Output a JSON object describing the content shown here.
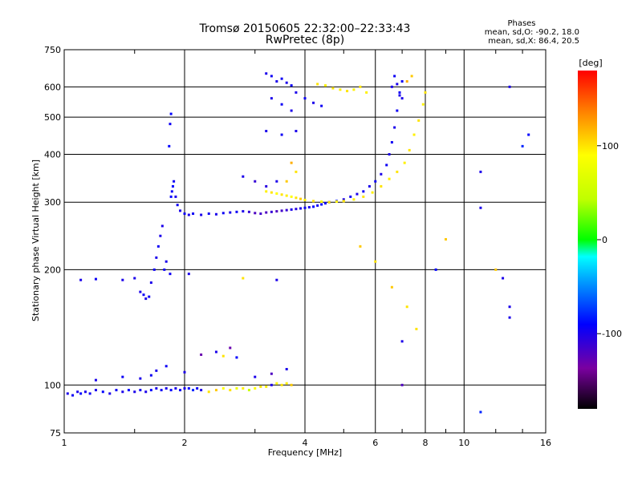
{
  "chart_data": {
    "type": "scatter",
    "title": "Tromsø 20150605 22:32:00–22:33:43",
    "subtitle": "RwPretec (8p)",
    "xlabel": "Frequency [MHz]",
    "ylabel": "Stationary phase Virtual Height [km]",
    "x_scale": "log",
    "y_scale": "log",
    "xlim": [
      1,
      16
    ],
    "ylim": [
      75,
      750
    ],
    "x_ticks": [
      1,
      2,
      4,
      6,
      8,
      10,
      16
    ],
    "x_tick_labels": [
      "1",
      "2",
      "4",
      "6",
      "8",
      "10",
      "16"
    ],
    "y_ticks": [
      75,
      100,
      200,
      300,
      400,
      500,
      600,
      750
    ],
    "y_tick_labels": [
      "75",
      "100",
      "200",
      "300",
      "400",
      "500",
      "600",
      "750"
    ],
    "grid": true,
    "phase_info": {
      "title": "Phases",
      "line_o": "mean, sd,O: -90.2, 18.0",
      "line_x": "mean, sd,X: 86.4, 20.5"
    },
    "colorbar": {
      "label": "[deg]",
      "range": [
        -180,
        180
      ],
      "ticks": [
        100,
        0,
        -100
      ],
      "tick_labels": [
        "100",
        "0",
        "-100"
      ]
    },
    "series": [
      {
        "points": [
          [
            1.02,
            95,
            -100
          ],
          [
            1.05,
            94,
            -95
          ],
          [
            1.08,
            96,
            -100
          ],
          [
            1.1,
            95,
            -90
          ],
          [
            1.13,
            96,
            -100
          ],
          [
            1.16,
            95,
            -95
          ],
          [
            1.2,
            97,
            -100
          ],
          [
            1.25,
            96,
            -90
          ],
          [
            1.3,
            95,
            -100
          ],
          [
            1.35,
            97,
            -95
          ],
          [
            1.4,
            96,
            -100
          ],
          [
            1.45,
            97,
            -90
          ],
          [
            1.5,
            96,
            -100
          ],
          [
            1.55,
            97,
            -95
          ],
          [
            1.6,
            96,
            -100
          ],
          [
            1.65,
            97,
            -90
          ],
          [
            1.7,
            98,
            -100
          ],
          [
            1.75,
            97,
            -95
          ],
          [
            1.8,
            98,
            -100
          ],
          [
            1.85,
            97,
            -90
          ],
          [
            1.9,
            98,
            -100
          ],
          [
            1.95,
            97,
            -95
          ],
          [
            2.0,
            98,
            -100
          ],
          [
            2.05,
            98,
            -90
          ],
          [
            2.1,
            97,
            -80
          ],
          [
            2.15,
            98,
            -95
          ],
          [
            2.2,
            97,
            -100
          ],
          [
            2.3,
            96,
            100
          ],
          [
            2.4,
            97,
            110
          ],
          [
            2.5,
            98,
            90
          ],
          [
            2.6,
            97,
            100
          ],
          [
            2.7,
            98,
            80
          ],
          [
            2.8,
            98,
            95
          ],
          [
            2.9,
            97,
            50
          ],
          [
            3.0,
            98,
            90
          ],
          [
            3.1,
            99,
            100
          ],
          [
            3.2,
            99,
            95
          ],
          [
            3.3,
            100,
            -100
          ],
          [
            3.4,
            101,
            90
          ],
          [
            3.5,
            100,
            100
          ],
          [
            3.6,
            101,
            95
          ],
          [
            3.7,
            100,
            110
          ],
          [
            1.2,
            103,
            -100
          ],
          [
            1.4,
            105,
            -95
          ],
          [
            1.55,
            104,
            -100
          ],
          [
            1.65,
            106,
            -95
          ],
          [
            1.7,
            109,
            -100
          ],
          [
            1.8,
            112,
            -95
          ],
          [
            2.0,
            108,
            -100
          ],
          [
            2.2,
            120,
            -130
          ],
          [
            2.4,
            122,
            -100
          ],
          [
            2.5,
            119,
            100
          ],
          [
            2.6,
            125,
            -130
          ],
          [
            2.7,
            118,
            -90
          ],
          [
            3.0,
            105,
            -100
          ],
          [
            3.3,
            107,
            -120
          ],
          [
            3.6,
            110,
            -100
          ],
          [
            1.1,
            188,
            -100
          ],
          [
            1.2,
            189,
            -95
          ],
          [
            1.4,
            188,
            -100
          ],
          [
            1.5,
            190,
            -100
          ],
          [
            1.55,
            175,
            -100
          ],
          [
            1.58,
            172,
            -95
          ],
          [
            1.6,
            168,
            -100
          ],
          [
            1.63,
            170,
            -95
          ],
          [
            1.65,
            185,
            -100
          ],
          [
            1.68,
            200,
            -95
          ],
          [
            1.7,
            215,
            -100
          ],
          [
            1.72,
            230,
            -95
          ],
          [
            1.74,
            245,
            -100
          ],
          [
            1.76,
            260,
            -100
          ],
          [
            1.78,
            200,
            -95
          ],
          [
            1.8,
            210,
            -100
          ],
          [
            1.84,
            195,
            -95
          ],
          [
            2.05,
            195,
            -100
          ],
          [
            2.8,
            190,
            100
          ],
          [
            3.4,
            188,
            -100
          ],
          [
            1.85,
            310,
            -90
          ],
          [
            1.86,
            320,
            -95
          ],
          [
            1.87,
            330,
            -90
          ],
          [
            1.88,
            340,
            -95
          ],
          [
            1.9,
            310,
            -100
          ],
          [
            1.92,
            295,
            -95
          ],
          [
            1.95,
            285,
            -100
          ],
          [
            2.0,
            280,
            -95
          ],
          [
            2.05,
            278,
            -100
          ],
          [
            2.1,
            280,
            -95
          ],
          [
            2.2,
            278,
            -100
          ],
          [
            2.3,
            280,
            -95
          ],
          [
            2.4,
            279,
            -100
          ],
          [
            2.5,
            281,
            -95
          ],
          [
            2.6,
            282,
            -100
          ],
          [
            2.7,
            283,
            -95
          ],
          [
            2.8,
            284,
            -100
          ],
          [
            2.9,
            283,
            -110
          ],
          [
            3.0,
            281,
            -120
          ],
          [
            3.1,
            280,
            -115
          ],
          [
            3.2,
            282,
            -120
          ],
          [
            3.3,
            283,
            -110
          ],
          [
            3.4,
            284,
            -120
          ],
          [
            3.5,
            285,
            -115
          ],
          [
            3.6,
            286,
            -110
          ],
          [
            3.7,
            287,
            -100
          ],
          [
            3.8,
            288,
            -105
          ],
          [
            3.9,
            289,
            -100
          ],
          [
            4.0,
            290,
            -95
          ],
          [
            4.1,
            291,
            -100
          ],
          [
            4.2,
            292,
            -90
          ],
          [
            4.3,
            294,
            -95
          ],
          [
            4.4,
            296,
            -90
          ],
          [
            4.5,
            298,
            -95
          ],
          [
            4.6,
            300,
            -90
          ],
          [
            4.8,
            302,
            -85
          ],
          [
            1.83,
            420,
            -90
          ],
          [
            1.84,
            480,
            -95
          ],
          [
            1.85,
            510,
            -90
          ],
          [
            2.8,
            350,
            -100
          ],
          [
            3.0,
            340,
            -110
          ],
          [
            3.2,
            330,
            -105
          ],
          [
            3.4,
            340,
            -100
          ],
          [
            3.2,
            320,
            95
          ],
          [
            3.3,
            318,
            100
          ],
          [
            3.4,
            316,
            90
          ],
          [
            3.5,
            314,
            100
          ],
          [
            3.6,
            312,
            95
          ],
          [
            3.7,
            310,
            90
          ],
          [
            3.8,
            308,
            100
          ],
          [
            3.9,
            306,
            110
          ],
          [
            4.0,
            304,
            95
          ],
          [
            4.2,
            302,
            100
          ],
          [
            4.4,
            301,
            90
          ],
          [
            4.6,
            300,
            100
          ],
          [
            4.8,
            301,
            95
          ],
          [
            5.0,
            302,
            90
          ],
          [
            3.6,
            340,
            110
          ],
          [
            3.8,
            360,
            100
          ],
          [
            3.7,
            380,
            120
          ],
          [
            5.0,
            305,
            -100
          ],
          [
            5.2,
            310,
            -95
          ],
          [
            5.4,
            315,
            -100
          ],
          [
            5.6,
            320,
            -95
          ],
          [
            5.8,
            330,
            -100
          ],
          [
            6.0,
            340,
            -95
          ],
          [
            6.2,
            355,
            -100
          ],
          [
            6.4,
            375,
            -95
          ],
          [
            6.5,
            400,
            -100
          ],
          [
            6.6,
            430,
            -95
          ],
          [
            6.7,
            470,
            -100
          ],
          [
            6.8,
            520,
            -95
          ],
          [
            6.9,
            570,
            -100
          ],
          [
            7.0,
            620,
            -95
          ],
          [
            5.0,
            302,
            100
          ],
          [
            5.3,
            305,
            95
          ],
          [
            5.6,
            310,
            100
          ],
          [
            5.9,
            318,
            95
          ],
          [
            6.2,
            330,
            100
          ],
          [
            6.5,
            345,
            95
          ],
          [
            6.8,
            360,
            100
          ],
          [
            7.1,
            380,
            95
          ],
          [
            7.3,
            410,
            100
          ],
          [
            7.5,
            450,
            95
          ],
          [
            7.7,
            490,
            100
          ],
          [
            7.9,
            540,
            95
          ],
          [
            8.0,
            580,
            100
          ],
          [
            6.6,
            600,
            -100
          ],
          [
            6.7,
            640,
            -95
          ],
          [
            6.8,
            610,
            -100
          ],
          [
            6.9,
            580,
            -95
          ],
          [
            7.0,
            560,
            -100
          ],
          [
            7.2,
            620,
            120
          ],
          [
            7.4,
            640,
            110
          ],
          [
            3.2,
            650,
            -100
          ],
          [
            3.3,
            640,
            -95
          ],
          [
            3.4,
            620,
            -100
          ],
          [
            3.5,
            630,
            -95
          ],
          [
            3.6,
            615,
            -100
          ],
          [
            3.7,
            605,
            -95
          ],
          [
            3.8,
            580,
            -100
          ],
          [
            4.0,
            560,
            -95
          ],
          [
            4.2,
            545,
            -100
          ],
          [
            4.4,
            535,
            -95
          ],
          [
            3.3,
            560,
            -100
          ],
          [
            3.5,
            540,
            -95
          ],
          [
            3.7,
            520,
            -100
          ],
          [
            3.2,
            460,
            -100
          ],
          [
            3.5,
            450,
            -95
          ],
          [
            3.8,
            460,
            -100
          ],
          [
            4.3,
            610,
            100
          ],
          [
            4.5,
            605,
            95
          ],
          [
            4.7,
            595,
            100
          ],
          [
            4.9,
            590,
            95
          ],
          [
            5.1,
            585,
            100
          ],
          [
            5.3,
            590,
            95
          ],
          [
            5.5,
            600,
            100
          ],
          [
            5.7,
            580,
            95
          ],
          [
            5.5,
            230,
            110
          ],
          [
            6.0,
            210,
            100
          ],
          [
            6.6,
            180,
            110
          ],
          [
            7.2,
            160,
            100
          ],
          [
            7.6,
            140,
            100
          ],
          [
            7.0,
            130,
            -100
          ],
          [
            7.0,
            100,
            -120
          ],
          [
            8.5,
            200,
            -90
          ],
          [
            9.0,
            240,
            110
          ],
          [
            11.0,
            360,
            -100
          ],
          [
            11.0,
            290,
            -100
          ],
          [
            12.0,
            200,
            110
          ],
          [
            12.5,
            190,
            -100
          ],
          [
            13.0,
            160,
            -100
          ],
          [
            13.0,
            150,
            -100
          ],
          [
            13.0,
            600,
            -100
          ],
          [
            14.5,
            450,
            -90
          ],
          [
            14.0,
            420,
            -80
          ],
          [
            11.0,
            85,
            -80
          ]
        ]
      }
    ]
  }
}
